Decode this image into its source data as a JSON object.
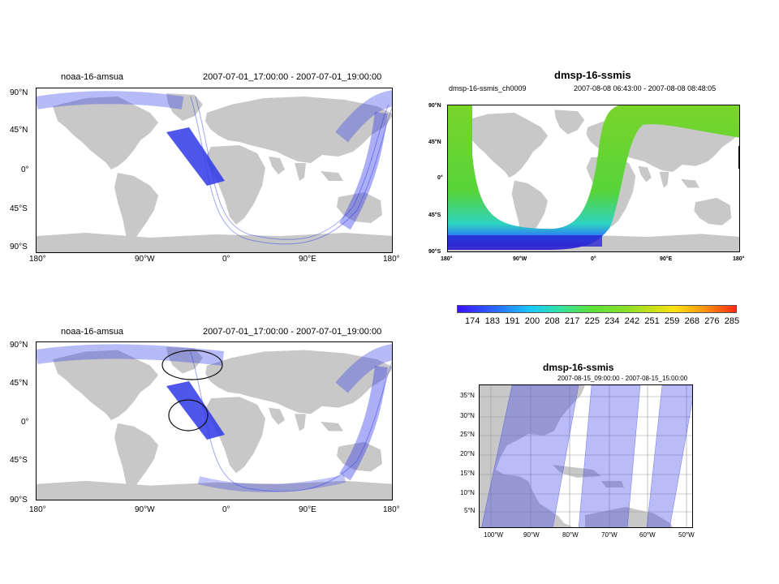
{
  "colors": {
    "land": "#c8c8c8",
    "swath": "#2f38e8",
    "circle": "#111111"
  },
  "panels": {
    "top_left": {
      "platform": "noaa-16-amsua",
      "time_range": "2007-07-01_17:00:00 - 2007-07-01_19:00:00",
      "lat_ticks": [
        "90°N",
        "45°N",
        "0°",
        "45°S",
        "90°S"
      ],
      "lon_ticks": [
        "180°",
        "90°W",
        "0°",
        "90°E",
        "180°"
      ]
    },
    "top_right": {
      "title": "dmsp-16-ssmis",
      "subtitle": "dmsp-16-ssmis_ch0009",
      "time_range": "2007-08-08  06:43:00 - 2007-08-08  08:48:05",
      "lat_ticks": [
        "90°N",
        "45°N",
        "0°",
        "45°S",
        "90°S"
      ],
      "lon_ticks": [
        "180°",
        "90°W",
        "0°",
        "90°E",
        "180°"
      ]
    },
    "colorbar": {
      "labels": [
        "174",
        "183",
        "191",
        "200",
        "208",
        "217",
        "225",
        "234",
        "242",
        "251",
        "259",
        "268",
        "276",
        "285"
      ]
    },
    "bottom_left": {
      "platform": "noaa-16-amsua",
      "time_range": "2007-07-01_17:00:00 - 2007-07-01_19:00:00",
      "lat_ticks": [
        "90°N",
        "45°N",
        "0°",
        "45°S",
        "90°S"
      ],
      "lon_ticks": [
        "180°",
        "90°W",
        "0°",
        "90°E",
        "180°"
      ]
    },
    "bottom_right": {
      "title": "dmsp-16-ssmis",
      "time_range": "2007-08-15_09:00:00 - 2007-08-15_15:00:00",
      "lat_ticks": [
        "35°N",
        "30°N",
        "25°N",
        "20°N",
        "15°N",
        "10°N",
        "5°N"
      ],
      "lon_ticks": [
        "100°W",
        "90°W",
        "80°W",
        "70°W",
        "60°W",
        "50°W"
      ]
    }
  }
}
